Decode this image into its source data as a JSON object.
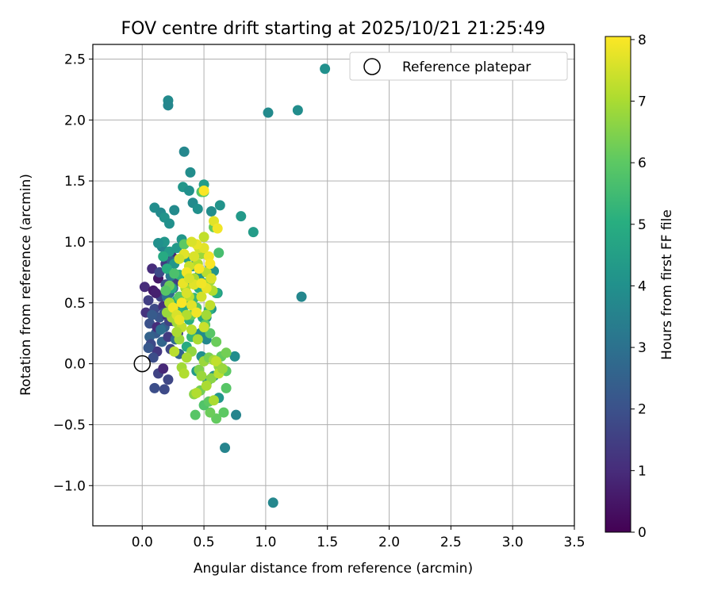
{
  "chart_data": {
    "type": "scatter",
    "title": "FOV centre drift starting at 2025/10/21 21:25:49",
    "xlabel": "Angular distance from reference (arcmin)",
    "ylabel": "Rotation from reference (arcmin)",
    "xlim": [
      -0.4,
      3.5
    ],
    "ylim": [
      -1.33,
      2.62
    ],
    "x_ticks": [
      "0.0",
      "0.5",
      "1.0",
      "1.5",
      "2.0",
      "2.5",
      "3.0",
      "3.5"
    ],
    "y_ticks": [
      "−1.0",
      "−0.5",
      "0.0",
      "0.5",
      "1.0",
      "1.5",
      "2.0",
      "2.5"
    ],
    "grid": true,
    "legend": {
      "position": "top-right",
      "entries": [
        "Reference platepar"
      ]
    },
    "reference_point": {
      "x": 0.0,
      "y": 0.0,
      "label": "Reference platepar"
    },
    "colorbar": {
      "label": "Hours from first FF file",
      "range": [
        0,
        8.05
      ],
      "ticks": [
        "0",
        "1",
        "2",
        "3",
        "4",
        "5",
        "6",
        "7",
        "8"
      ],
      "colormap": "viridis"
    },
    "points": [
      [
        0.02,
        0.63,
        1.0
      ],
      [
        0.03,
        0.42,
        1.2
      ],
      [
        0.05,
        0.52,
        1.5
      ],
      [
        0.06,
        0.33,
        2.0
      ],
      [
        0.08,
        0.78,
        1.0
      ],
      [
        0.09,
        0.6,
        0.6
      ],
      [
        0.1,
        0.45,
        1.8
      ],
      [
        0.11,
        0.25,
        2.3
      ],
      [
        0.12,
        0.1,
        1.3
      ],
      [
        0.13,
        0.7,
        0.5
      ],
      [
        0.14,
        0.38,
        2.1
      ],
      [
        0.15,
        0.55,
        1.6
      ],
      [
        0.16,
        0.18,
        2.6
      ],
      [
        0.17,
        0.47,
        1.1
      ],
      [
        0.18,
        0.3,
        2.4
      ],
      [
        0.19,
        0.65,
        1.9
      ],
      [
        0.2,
        0.4,
        0.8
      ],
      [
        0.21,
        0.22,
        1.4
      ],
      [
        0.22,
        0.58,
        2.7
      ],
      [
        0.23,
        0.12,
        1.7
      ],
      [
        0.24,
        0.88,
        0.9
      ],
      [
        0.25,
        0.35,
        2.2
      ],
      [
        0.26,
        0.5,
        1.2
      ],
      [
        0.27,
        0.2,
        2.8
      ],
      [
        0.28,
        0.68,
        1.5
      ],
      [
        0.06,
        0.22,
        2.5
      ],
      [
        0.09,
        0.05,
        1.9
      ],
      [
        0.12,
        0.3,
        1.0
      ],
      [
        0.15,
        0.28,
        2.9
      ],
      [
        0.18,
        0.42,
        2.0
      ],
      [
        0.2,
        0.55,
        3.0
      ],
      [
        0.22,
        0.35,
        1.6
      ],
      [
        0.25,
        0.62,
        2.4
      ],
      [
        0.14,
        0.75,
        1.8
      ],
      [
        0.1,
        -0.2,
        1.9
      ],
      [
        0.13,
        -0.08,
        1.6
      ],
      [
        0.18,
        -0.21,
        1.8
      ],
      [
        0.21,
        -0.13,
        1.7
      ],
      [
        0.17,
        -0.04,
        0.9
      ],
      [
        0.07,
        0.16,
        1.8
      ],
      [
        0.3,
        0.08,
        2.6
      ],
      [
        0.19,
        0.82,
        1.4
      ],
      [
        0.16,
        0.96,
        3.6
      ],
      [
        0.24,
        0.84,
        2.5
      ],
      [
        0.27,
        0.46,
        2.0
      ],
      [
        0.08,
        0.4,
        2.3
      ],
      [
        0.11,
        0.58,
        0.7
      ],
      [
        0.05,
        0.13,
        2.2
      ],
      [
        0.29,
        0.25,
        1.5
      ],
      [
        0.23,
        0.72,
        3.2
      ],
      [
        0.1,
        1.28,
        3.9
      ],
      [
        0.15,
        1.24,
        3.8
      ],
      [
        0.18,
        1.2,
        4.1
      ],
      [
        0.22,
        1.15,
        4.0
      ],
      [
        0.26,
        1.26,
        3.8
      ],
      [
        0.33,
        1.45,
        4.2
      ],
      [
        0.38,
        1.42,
        4.0
      ],
      [
        0.41,
        1.32,
        3.8
      ],
      [
        0.45,
        1.27,
        4.0
      ],
      [
        0.5,
        1.47,
        4.4
      ],
      [
        0.56,
        1.25,
        3.9
      ],
      [
        0.63,
        1.3,
        4.1
      ],
      [
        0.8,
        1.21,
        4.3
      ],
      [
        0.9,
        1.08,
        4.4
      ],
      [
        0.34,
        1.74,
        3.7
      ],
      [
        0.39,
        1.57,
        3.9
      ],
      [
        0.21,
        2.16,
        3.8
      ],
      [
        0.21,
        2.12,
        3.7
      ],
      [
        1.02,
        2.06,
        3.8
      ],
      [
        1.26,
        2.08,
        3.9
      ],
      [
        1.48,
        2.42,
        4.0
      ],
      [
        1.29,
        0.55,
        3.7
      ],
      [
        0.76,
        -0.42,
        3.6
      ],
      [
        1.06,
        -1.14,
        3.7
      ],
      [
        0.67,
        -0.69,
        3.6
      ],
      [
        0.75,
        0.06,
        3.9
      ],
      [
        0.18,
        1.0,
        4.2
      ],
      [
        0.22,
        0.92,
        4.4
      ],
      [
        0.28,
        0.95,
        4.3
      ],
      [
        0.32,
        1.02,
        4.2
      ],
      [
        0.36,
        0.87,
        4.5
      ],
      [
        0.41,
        0.8,
        4.0
      ],
      [
        0.46,
        0.72,
        4.3
      ],
      [
        0.5,
        0.66,
        4.2
      ],
      [
        0.55,
        0.8,
        3.9
      ],
      [
        0.58,
        0.76,
        4.1
      ],
      [
        0.61,
        0.58,
        4.3
      ],
      [
        0.56,
        0.45,
        4.1
      ],
      [
        0.52,
        0.38,
        4.4
      ],
      [
        0.47,
        0.25,
        3.9
      ],
      [
        0.52,
        0.2,
        3.7
      ],
      [
        0.48,
        0.06,
        4.0
      ],
      [
        0.44,
        -0.06,
        4.3
      ],
      [
        0.53,
        -0.14,
        4.1
      ],
      [
        0.58,
        -0.1,
        4.0
      ],
      [
        0.62,
        -0.28,
        4.2
      ],
      [
        0.36,
        0.65,
        3.8
      ],
      [
        0.32,
        0.72,
        4.4
      ],
      [
        0.26,
        0.82,
        4.2
      ],
      [
        0.13,
        0.99,
        4.0
      ],
      [
        0.24,
        0.62,
        4.8
      ],
      [
        0.28,
        0.52,
        5.0
      ],
      [
        0.31,
        0.42,
        5.2
      ],
      [
        0.35,
        0.48,
        4.9
      ],
      [
        0.38,
        0.36,
        5.1
      ],
      [
        0.42,
        0.54,
        5.3
      ],
      [
        0.46,
        0.62,
        5.0
      ],
      [
        0.49,
        0.38,
        4.8
      ],
      [
        0.3,
        0.73,
        5.2
      ],
      [
        0.2,
        0.78,
        5.0
      ],
      [
        0.17,
        0.88,
        4.9
      ],
      [
        0.6,
        0.58,
        5.0
      ],
      [
        0.54,
        0.44,
        5.1
      ],
      [
        0.4,
        0.22,
        5.3
      ],
      [
        0.36,
        0.14,
        4.9
      ],
      [
        0.62,
        0.91,
        5.6
      ],
      [
        0.58,
        1.12,
        6.1
      ],
      [
        0.48,
        1.41,
        5.8
      ],
      [
        0.5,
        1.41,
        5.9
      ],
      [
        0.34,
        0.98,
        6.0
      ],
      [
        0.26,
        0.74,
        5.7
      ],
      [
        0.22,
        0.64,
        6.2
      ],
      [
        0.19,
        0.6,
        5.9
      ],
      [
        0.3,
        0.55,
        6.0
      ],
      [
        0.4,
        0.4,
        6.1
      ],
      [
        0.44,
        0.46,
        5.8
      ],
      [
        0.51,
        0.32,
        6.0
      ],
      [
        0.55,
        0.25,
        5.9
      ],
      [
        0.6,
        0.18,
        6.2
      ],
      [
        0.64,
        0.06,
        6.1
      ],
      [
        0.68,
        0.09,
        6.3
      ],
      [
        0.68,
        -0.06,
        6.0
      ],
      [
        0.68,
        -0.2,
        5.9
      ],
      [
        0.66,
        -0.4,
        6.0
      ],
      [
        0.6,
        -0.45,
        6.1
      ],
      [
        0.55,
        -0.4,
        6.2
      ],
      [
        0.5,
        -0.34,
        5.8
      ],
      [
        0.54,
        -0.31,
        6.0
      ],
      [
        0.43,
        -0.42,
        5.9
      ],
      [
        0.47,
        -0.22,
        6.3
      ],
      [
        0.42,
        -0.25,
        6.6
      ],
      [
        0.46,
        -0.05,
        6.5
      ],
      [
        0.5,
        0.02,
        6.8
      ],
      [
        0.54,
        0.05,
        6.4
      ],
      [
        0.58,
        0.03,
        6.9
      ],
      [
        0.62,
        -0.02,
        6.7
      ],
      [
        0.56,
        -0.12,
        6.6
      ],
      [
        0.52,
        -0.18,
        7.0
      ],
      [
        0.48,
        -0.1,
        6.8
      ],
      [
        0.4,
        0.1,
        6.7
      ],
      [
        0.36,
        0.05,
        7.0
      ],
      [
        0.32,
        -0.03,
        6.9
      ],
      [
        0.34,
        -0.08,
        7.1
      ],
      [
        0.3,
        0.2,
        6.8
      ],
      [
        0.26,
        0.1,
        7.2
      ],
      [
        0.28,
        0.34,
        6.9
      ],
      [
        0.24,
        0.38,
        7.0
      ],
      [
        0.2,
        0.42,
        6.8
      ],
      [
        0.22,
        0.5,
        7.1
      ],
      [
        0.35,
        0.62,
        6.9
      ],
      [
        0.38,
        0.55,
        7.2
      ],
      [
        0.42,
        0.7,
        7.0
      ],
      [
        0.45,
        0.82,
        7.1
      ],
      [
        0.48,
        0.9,
        6.8
      ],
      [
        0.52,
        0.75,
        7.2
      ],
      [
        0.55,
        0.68,
        6.9
      ],
      [
        0.57,
        0.6,
        7.1
      ],
      [
        0.55,
        0.48,
        7.3
      ],
      [
        0.52,
        0.4,
        6.9
      ],
      [
        0.5,
        0.3,
        7.4
      ],
      [
        0.45,
        0.2,
        7.0
      ],
      [
        0.4,
        0.28,
        7.2
      ],
      [
        0.36,
        0.4,
        7.1
      ],
      [
        0.32,
        0.3,
        7.3
      ],
      [
        0.28,
        0.26,
        7.0
      ],
      [
        0.6,
        0.02,
        7.3
      ],
      [
        0.62,
        -0.08,
        7.2
      ],
      [
        0.44,
        -0.24,
        7.1
      ],
      [
        0.58,
        -0.3,
        7.0
      ],
      [
        0.65,
        -0.04,
        6.8
      ],
      [
        0.5,
        1.04,
        7.3
      ],
      [
        0.46,
        0.95,
        7.5
      ],
      [
        0.42,
        0.88,
        7.6
      ],
      [
        0.38,
        0.8,
        7.4
      ],
      [
        0.34,
        0.9,
        7.7
      ],
      [
        0.3,
        0.86,
        7.5
      ],
      [
        0.33,
        0.66,
        7.8
      ],
      [
        0.36,
        0.58,
        7.6
      ],
      [
        0.4,
        0.48,
        7.7
      ],
      [
        0.44,
        0.42,
        7.9
      ],
      [
        0.48,
        0.55,
        7.5
      ],
      [
        0.52,
        0.62,
        7.8
      ],
      [
        0.56,
        0.7,
        7.6
      ],
      [
        0.54,
        0.88,
        7.9
      ],
      [
        0.5,
        0.95,
        7.7
      ],
      [
        0.44,
        0.98,
        7.8
      ],
      [
        0.4,
        1.0,
        7.6
      ],
      [
        0.36,
        0.75,
        7.9
      ],
      [
        0.46,
        0.78,
        8.0
      ],
      [
        0.42,
        0.65,
        7.7
      ],
      [
        0.25,
        0.46,
        7.9
      ],
      [
        0.28,
        0.4,
        7.6
      ],
      [
        0.32,
        0.5,
        8.0
      ],
      [
        0.58,
        1.17,
        7.7
      ],
      [
        0.61,
        1.11,
        7.9
      ],
      [
        0.5,
        1.42,
        8.0
      ],
      [
        0.38,
        0.7,
        7.6
      ],
      [
        0.48,
        0.66,
        7.9
      ],
      [
        0.55,
        0.82,
        8.0
      ],
      [
        0.3,
        0.36,
        7.8
      ]
    ]
  }
}
